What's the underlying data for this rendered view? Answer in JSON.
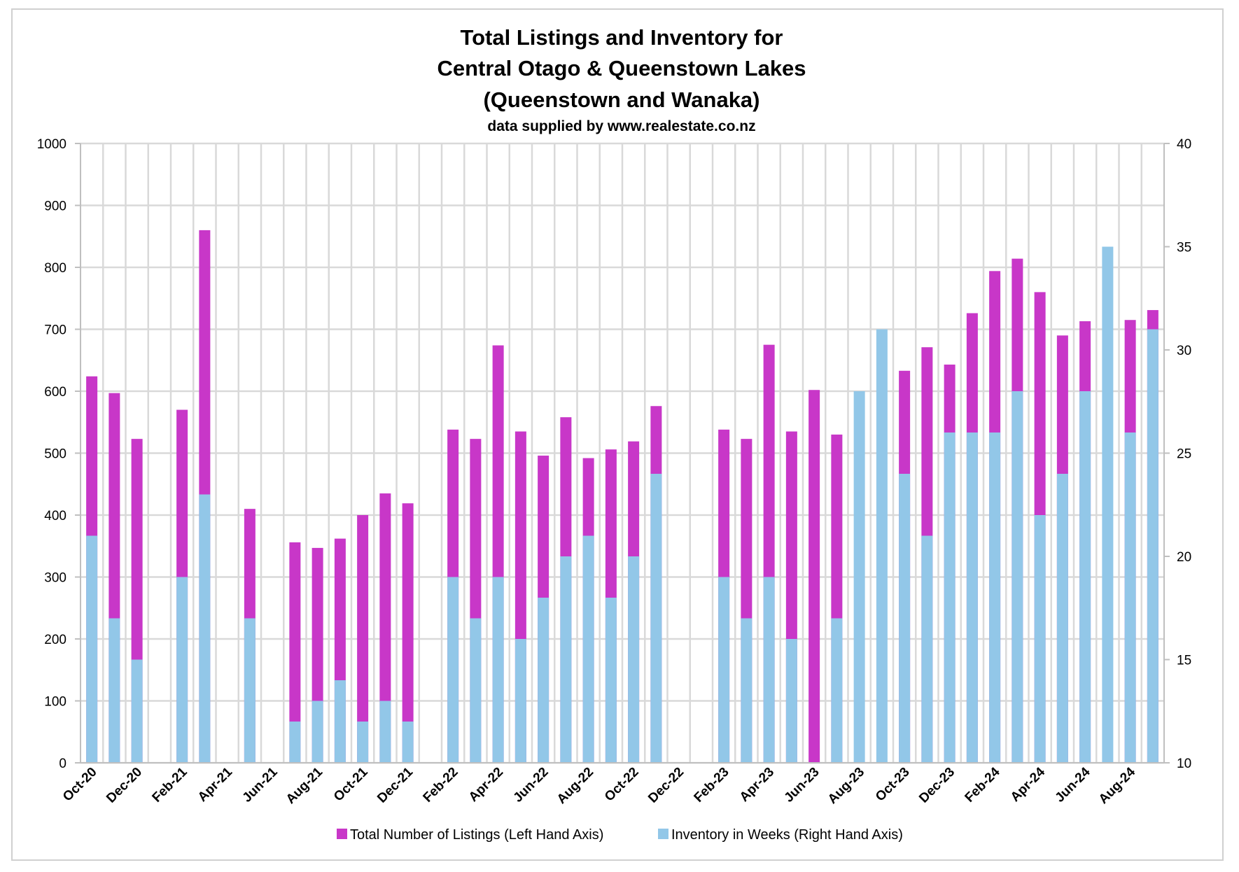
{
  "chart_data": {
    "type": "bar",
    "title_lines": [
      "Total Listings and Inventory for",
      "Central Otago & Queenstown Lakes",
      "(Queenstown and Wanaka)"
    ],
    "subtitle": "data supplied by www.realestate.co.nz",
    "months": [
      "Oct-20",
      "Nov-20",
      "Dec-20",
      "Jan-21",
      "Feb-21",
      "Mar-21",
      "Apr-21",
      "May-21",
      "Jun-21",
      "Jul-21",
      "Aug-21",
      "Sep-21",
      "Oct-21",
      "Nov-21",
      "Dec-21",
      "Jan-22",
      "Feb-22",
      "Mar-22",
      "Apr-22",
      "May-22",
      "Jun-22",
      "Jul-22",
      "Aug-22",
      "Sep-22",
      "Oct-22",
      "Nov-22",
      "Dec-22",
      "Jan-23",
      "Feb-23",
      "Mar-23",
      "Apr-23",
      "May-23",
      "Jun-23",
      "Jul-23",
      "Aug-23",
      "Sep-23",
      "Oct-23",
      "Nov-23",
      "Dec-23",
      "Jan-24",
      "Feb-24",
      "Mar-24",
      "Apr-24",
      "May-24",
      "Jun-24",
      "Jul-24",
      "Aug-24",
      "Sep-24"
    ],
    "x_tick_labels": [
      "Oct-20",
      "Dec-20",
      "Feb-21",
      "Apr-21",
      "Jun-21",
      "Aug-21",
      "Oct-21",
      "Dec-21",
      "Feb-22",
      "Apr-22",
      "Jun-22",
      "Aug-22",
      "Oct-22",
      "Dec-22",
      "Feb-23",
      "Apr-23",
      "Jun-23",
      "Aug-23",
      "Oct-23",
      "Dec-23",
      "Feb-24",
      "Apr-24",
      "Jun-24",
      "Aug-24"
    ],
    "left_axis": {
      "ylim": [
        0,
        1000
      ],
      "ticks": [
        "0",
        "100",
        "200",
        "300",
        "400",
        "500",
        "600",
        "700",
        "800",
        "900",
        "1000"
      ]
    },
    "right_axis": {
      "ylim": [
        10,
        40
      ],
      "ticks": [
        "10",
        "15",
        "20",
        "25",
        "30",
        "35",
        "40"
      ]
    },
    "series": [
      {
        "name": "Total Number of Listings (Left Hand Axis)",
        "axis": "left",
        "color": "#C837C8",
        "values": [
          624,
          597,
          523,
          null,
          570,
          860,
          null,
          410,
          null,
          356,
          347,
          362,
          400,
          435,
          419,
          null,
          538,
          523,
          674,
          535,
          496,
          558,
          492,
          506,
          519,
          576,
          null,
          null,
          538,
          523,
          675,
          535,
          602,
          530,
          null,
          null,
          633,
          671,
          643,
          726,
          794,
          814,
          760,
          690,
          713,
          null,
          715,
          731
        ]
      },
      {
        "name": "Inventory in Weeks (Right Hand Axis)",
        "axis": "right",
        "color": "#92C7E8",
        "values": [
          21,
          17,
          15,
          null,
          19,
          23,
          null,
          17,
          null,
          12,
          13,
          14,
          12,
          13,
          12,
          null,
          19,
          17,
          19,
          16,
          18,
          20,
          21,
          18,
          20,
          24,
          null,
          null,
          19,
          17,
          19,
          16,
          null,
          17,
          28,
          31,
          24,
          21,
          26,
          26,
          26,
          28,
          22,
          24,
          28,
          35,
          26,
          31
        ]
      }
    ],
    "grid": true,
    "legend_position": "bottom"
  }
}
